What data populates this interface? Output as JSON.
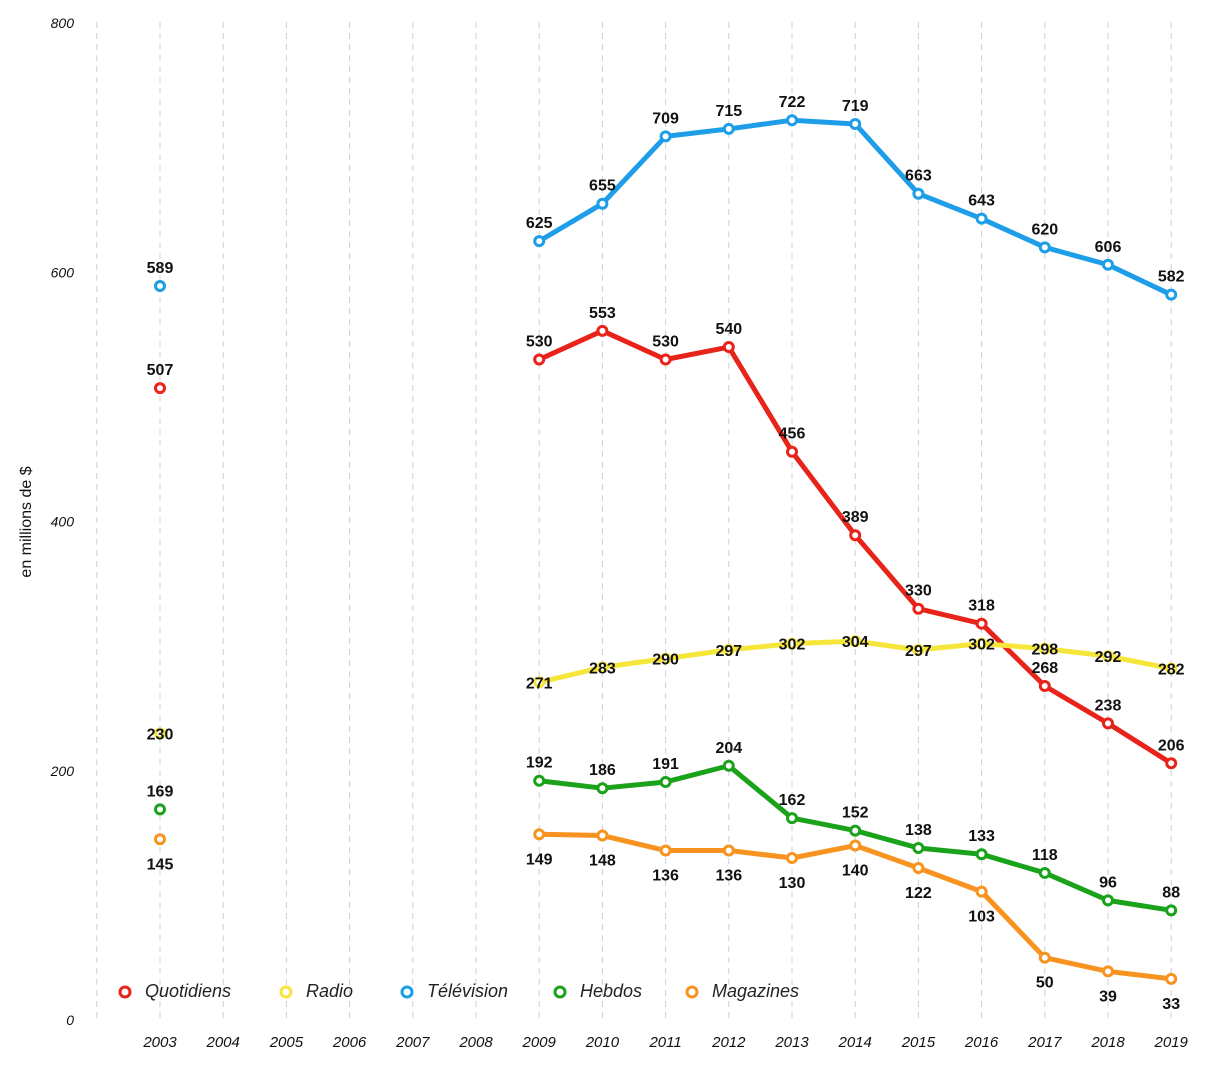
{
  "chart_data": {
    "type": "line",
    "ylabel": "en millions de $",
    "xlabel": "",
    "ylim": [
      0,
      800
    ],
    "yticks": [
      0,
      200,
      400,
      600,
      800
    ],
    "categories": [
      "2003",
      "2004",
      "2005",
      "2006",
      "2007",
      "2008",
      "2009",
      "2010",
      "2011",
      "2012",
      "2013",
      "2014",
      "2015",
      "2016",
      "2017",
      "2018",
      "2019"
    ],
    "grid": "vertical dashed",
    "legend_position": "bottom-left",
    "series": [
      {
        "name": "Quotidiens",
        "color": "#e8231a",
        "values": [
          507,
          null,
          null,
          null,
          null,
          null,
          530,
          553,
          530,
          540,
          456,
          389,
          330,
          318,
          268,
          238,
          206
        ],
        "label_pos": [
          "above",
          null,
          null,
          null,
          null,
          null,
          "above",
          "above",
          "above",
          "above",
          "above",
          "above",
          "above",
          "above",
          "above",
          "above",
          "above"
        ]
      },
      {
        "name": "Radio",
        "color": "#f7e63a",
        "values": [
          230,
          null,
          null,
          null,
          null,
          null,
          271,
          283,
          290,
          297,
          302,
          304,
          297,
          302,
          298,
          292,
          282
        ],
        "label_pos": [
          "center",
          null,
          null,
          null,
          null,
          null,
          "center",
          "center",
          "center",
          "center",
          "center",
          "center",
          "center",
          "center",
          "center",
          "center",
          "center"
        ]
      },
      {
        "name": "Télévision",
        "color": "#1e9de8",
        "values": [
          589,
          null,
          null,
          null,
          null,
          null,
          625,
          655,
          709,
          715,
          722,
          719,
          663,
          643,
          620,
          606,
          582
        ],
        "label_pos": [
          "above",
          null,
          null,
          null,
          null,
          null,
          "above",
          "above",
          "above",
          "above",
          "above",
          "above",
          "above",
          "above",
          "above",
          "above",
          "above"
        ]
      },
      {
        "name": "Hebdos",
        "color": "#1aa31a",
        "values": [
          169,
          null,
          null,
          null,
          null,
          null,
          192,
          186,
          191,
          204,
          162,
          152,
          138,
          133,
          118,
          96,
          88
        ],
        "label_pos": [
          "above",
          null,
          null,
          null,
          null,
          null,
          "above",
          "above",
          "above",
          "above",
          "above",
          "above",
          "above",
          "above",
          "above",
          "above",
          "above"
        ]
      },
      {
        "name": "Magazines",
        "color": "#f7931e",
        "values": [
          145,
          null,
          null,
          null,
          null,
          null,
          149,
          148,
          136,
          136,
          130,
          140,
          122,
          103,
          50,
          39,
          33
        ],
        "label_pos": [
          "below",
          null,
          null,
          null,
          null,
          null,
          "below",
          "below",
          "below",
          "below",
          "below",
          "below",
          "below",
          "below",
          "below",
          "below",
          "below"
        ]
      }
    ]
  }
}
